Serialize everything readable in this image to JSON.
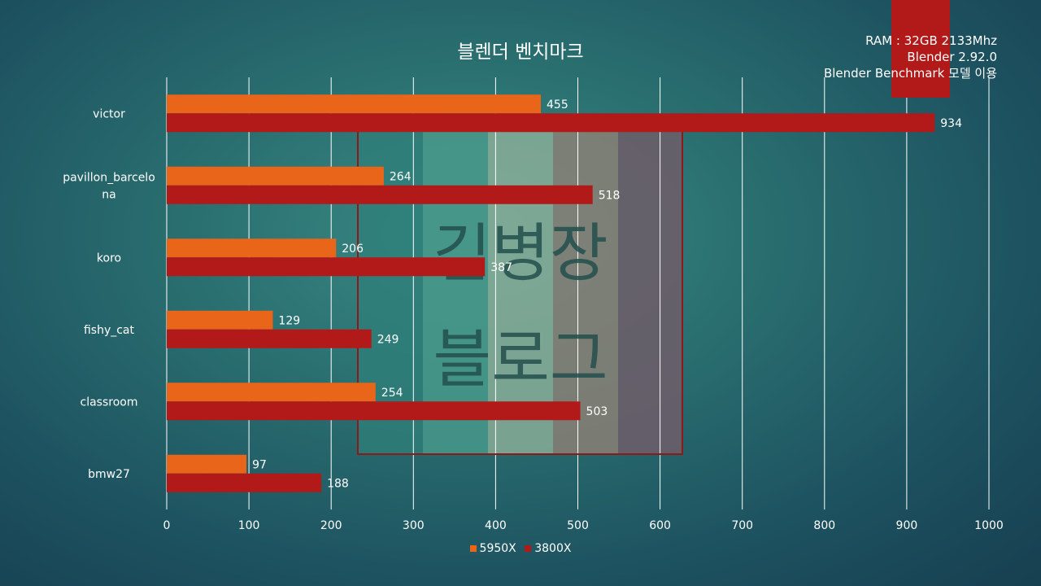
{
  "info": {
    "lines": [
      "RAM : 32GB 2133Mhz",
      "Blender 2.92.0",
      "Blender Benchmark 모델 이용"
    ],
    "accent_color": "#b11a18"
  },
  "watermark": {
    "lines": [
      "김병장",
      "블로그"
    ],
    "border_color": "#8b1a1a"
  },
  "chart_data": {
    "type": "bar",
    "orientation": "horizontal",
    "title": "블렌더 벤치마크",
    "categories": [
      "victor",
      "pavillon_barcelona",
      "koro",
      "fishy_cat",
      "classroom",
      "bmw27"
    ],
    "category_display": [
      [
        "victor"
      ],
      [
        "pavillon_barcelo",
        "na"
      ],
      [
        "koro"
      ],
      [
        "fishy_cat"
      ],
      [
        "classroom"
      ],
      [
        "bmw27"
      ]
    ],
    "series": [
      {
        "name": "5950X",
        "color": "#e8651a",
        "values": [
          455,
          264,
          206,
          129,
          254,
          97
        ]
      },
      {
        "name": "3800X",
        "color": "#b11a18",
        "values": [
          934,
          518,
          387,
          249,
          503,
          188
        ]
      }
    ],
    "xlim": [
      0,
      1000
    ],
    "xticks": [
      0,
      100,
      200,
      300,
      400,
      500,
      600,
      700,
      800,
      900,
      1000
    ],
    "grid": true,
    "legend_position": "bottom"
  }
}
